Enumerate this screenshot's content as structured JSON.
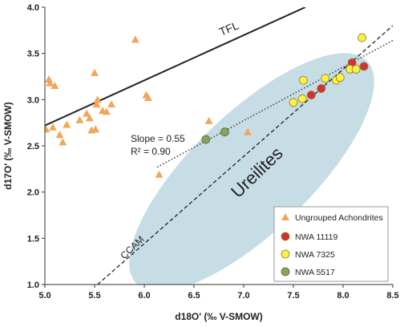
{
  "chart_data": {
    "type": "scatter",
    "xlabel": "d18O' (‰ V-SMOW)",
    "ylabel": "d17O' (‰ V-SMOW)",
    "xlim": [
      5.0,
      8.5
    ],
    "ylim": [
      1.0,
      4.0
    ],
    "xticks": [
      "5.0",
      "5.5",
      "6.0",
      "6.5",
      "7.0",
      "7.5",
      "8.0",
      "8.5"
    ],
    "yticks": [
      "1.0",
      "1.5",
      "2.0",
      "2.5",
      "3.0",
      "3.5",
      "4.0"
    ],
    "grid": false,
    "legend_position": "bottom-right",
    "series": [
      {
        "name": "Ungrouped Achondrites",
        "marker": "triangle",
        "color": "#f2a65a",
        "points": [
          [
            5.01,
            2.68
          ],
          [
            5.04,
            3.22
          ],
          [
            5.05,
            3.18
          ],
          [
            5.08,
            2.7
          ],
          [
            5.1,
            3.15
          ],
          [
            5.15,
            2.62
          ],
          [
            5.18,
            2.54
          ],
          [
            5.22,
            2.73
          ],
          [
            5.35,
            2.78
          ],
          [
            5.42,
            2.85
          ],
          [
            5.45,
            2.8
          ],
          [
            5.47,
            2.67
          ],
          [
            5.5,
            3.29
          ],
          [
            5.51,
            2.68
          ],
          [
            5.52,
            2.95
          ],
          [
            5.53,
            3.0
          ],
          [
            5.58,
            2.88
          ],
          [
            5.62,
            2.87
          ],
          [
            5.67,
            2.95
          ],
          [
            5.91,
            3.65
          ],
          [
            6.02,
            3.05
          ],
          [
            6.04,
            3.02
          ],
          [
            6.15,
            2.19
          ],
          [
            6.65,
            2.77
          ],
          [
            7.04,
            2.65
          ]
        ]
      },
      {
        "name": "NWA 11119",
        "marker": "circle",
        "color": "#d9302c",
        "points": [
          [
            7.68,
            3.05
          ],
          [
            7.78,
            3.12
          ],
          [
            8.09,
            3.4
          ],
          [
            8.21,
            3.36
          ]
        ]
      },
      {
        "name": "NWA 7325",
        "marker": "circle",
        "color": "#fff23c",
        "points": [
          [
            7.5,
            2.97
          ],
          [
            7.59,
            3.01
          ],
          [
            7.6,
            3.21
          ],
          [
            7.82,
            3.23
          ],
          [
            7.93,
            3.21
          ],
          [
            7.97,
            3.24
          ],
          [
            8.07,
            3.33
          ],
          [
            8.13,
            3.33
          ],
          [
            8.19,
            3.67
          ]
        ]
      },
      {
        "name": "NWA 5517",
        "marker": "circle",
        "color": "#8aa35a",
        "points": [
          [
            6.62,
            2.57
          ],
          [
            6.81,
            2.65
          ]
        ]
      }
    ],
    "annotations": {
      "tfl_label": "TFL",
      "ccam_label": "CCAM",
      "ureilites_label": "Ureilites",
      "slope_label": "Slope = 0.55",
      "r2_label": "R² = 0.90"
    },
    "lines": {
      "tfl": {
        "x": [
          5.0,
          7.62
        ],
        "y": [
          2.72,
          4.0
        ]
      },
      "ccam": {
        "x": [
          5.53,
          8.5
        ],
        "y": [
          1.0,
          3.8
        ]
      },
      "fit": {
        "x": [
          6.13,
          8.5
        ],
        "y": [
          2.27,
          3.64
        ]
      }
    },
    "colors": {
      "region_fill": "#c7dde6",
      "line_color": "#222222",
      "axis_color": "#333333"
    }
  }
}
